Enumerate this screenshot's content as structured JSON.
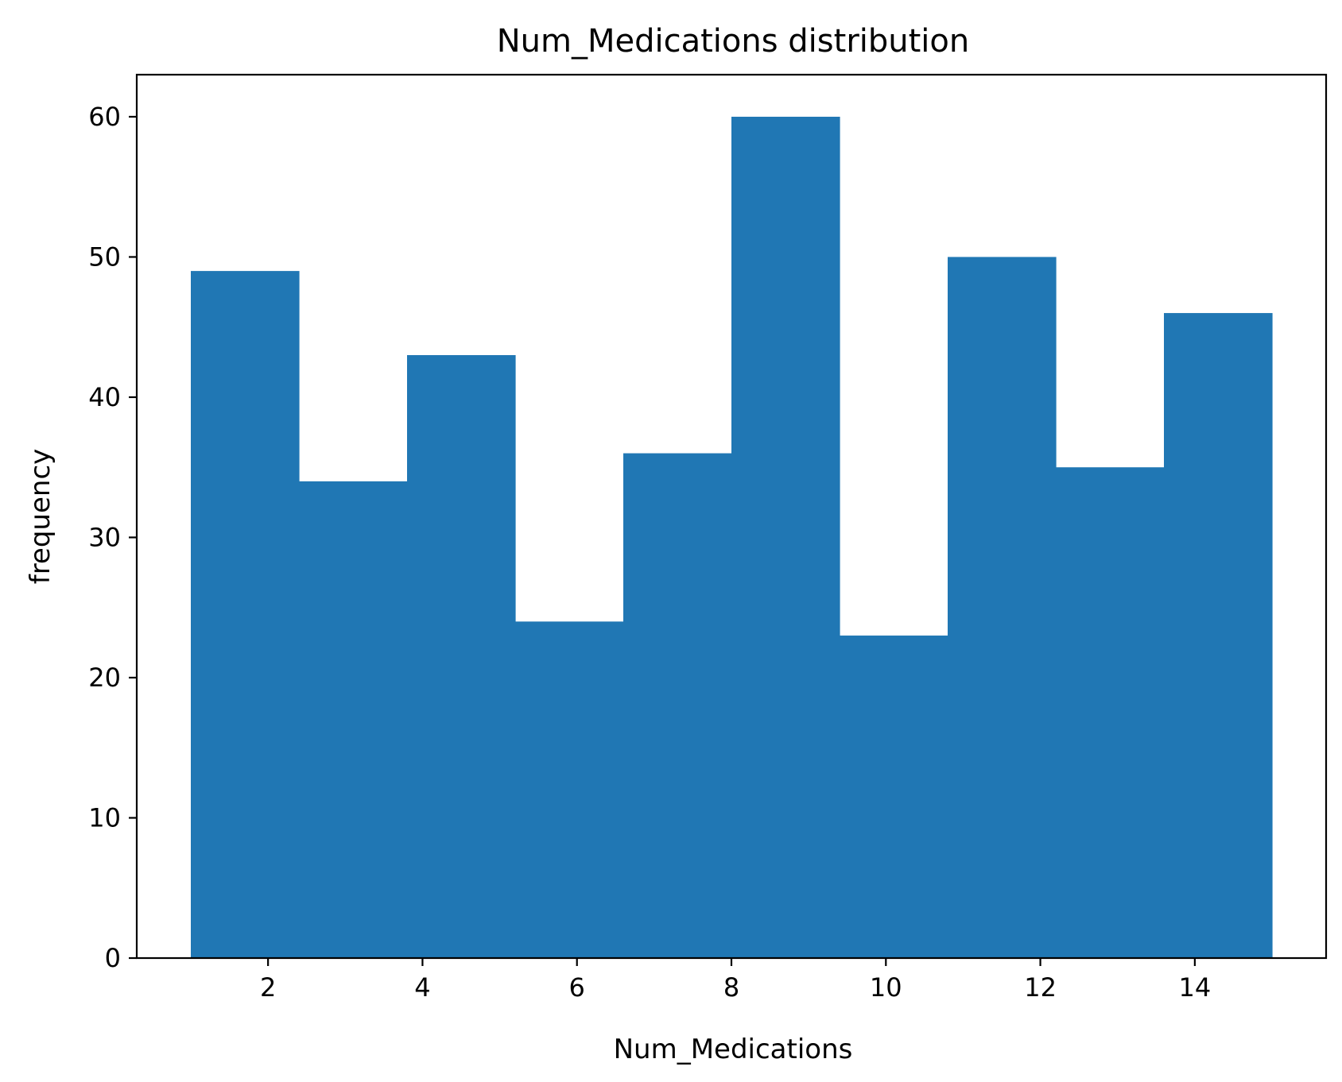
{
  "chart_data": {
    "type": "bar",
    "title": "Num_Medications distribution",
    "xlabel": "Num_Medications",
    "ylabel": "frequency",
    "bin_edges": [
      1,
      2.4,
      3.8,
      5.2,
      6.6,
      8,
      9.4,
      10.8,
      12.2,
      13.6,
      15
    ],
    "values": [
      49,
      34,
      43,
      24,
      36,
      60,
      23,
      50,
      35,
      46
    ],
    "xlim": [
      0.3,
      15.7
    ],
    "ylim": [
      0,
      63
    ],
    "xticks": [
      2,
      4,
      6,
      8,
      10,
      12,
      14
    ],
    "yticks": [
      0,
      10,
      20,
      30,
      40,
      50,
      60
    ],
    "bar_color": "#2077b4",
    "grid": false,
    "legend": "none"
  }
}
